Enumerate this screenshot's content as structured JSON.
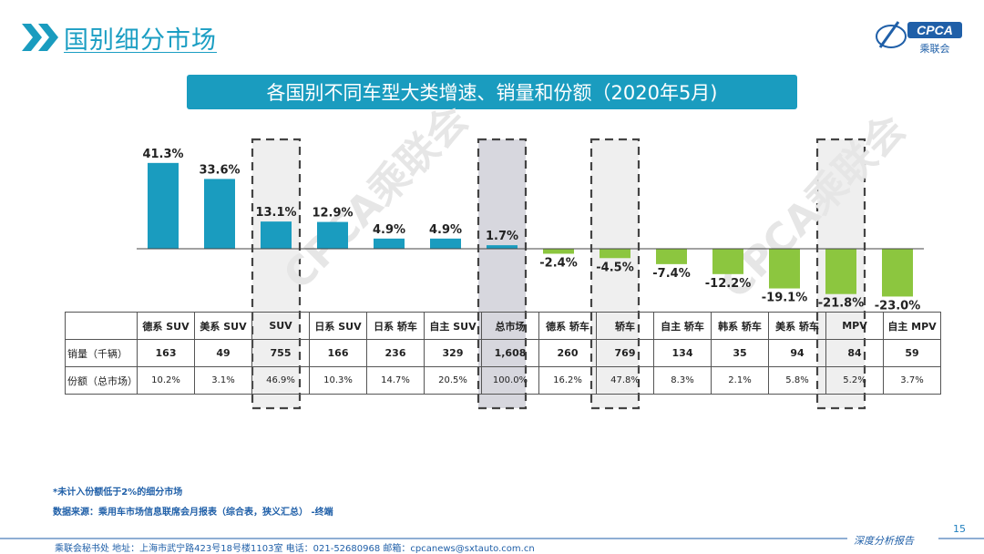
{
  "header": {
    "title": "国别细分市场",
    "logo_text": "CPCA",
    "logo_sub": "乘联会"
  },
  "chart_title": "各国别不同车型大类增速、销量和份额（2020年5月)",
  "watermark": "CPCA乘联会",
  "colors": {
    "positive": "#1a9cbf",
    "negative": "#8cc63f",
    "highlight_gray": "#d7d7de",
    "highlight_light": "#efefef"
  },
  "chart_data": {
    "type": "bar",
    "categories": [
      "德系 SUV",
      "美系 SUV",
      "SUV",
      "日系 SUV",
      "日系 轿车",
      "自主 SUV",
      "总市场",
      "德系 轿车",
      "轿车",
      "自主 轿车",
      "韩系 轿车",
      "美系 轿车",
      "MPV",
      "自主 MPV"
    ],
    "series": [
      {
        "values": [
          41.3,
          33.6,
          13.1,
          12.9,
          4.9,
          4.9,
          1.7,
          -2.4,
          -4.5,
          -7.4,
          -12.2,
          -19.1,
          -21.8,
          -23.0
        ]
      }
    ],
    "value_labels": [
      "41.3%",
      "33.6%",
      "13.1%",
      "12.9%",
      "4.9%",
      "4.9%",
      "1.7%",
      "-2.4%",
      "-4.5%",
      "-7.4%",
      "-12.2%",
      "-19.1%",
      "-21.8%",
      "-23.0%"
    ],
    "highlighted": [
      "SUV",
      "总市场",
      "轿车",
      "MPV"
    ]
  },
  "table": {
    "row_labels": [
      "销量（千辆）",
      "份额（总市场）"
    ],
    "sales": [
      "163",
      "49",
      "755",
      "166",
      "236",
      "329",
      "1,608",
      "260",
      "769",
      "134",
      "35",
      "94",
      "84",
      "59"
    ],
    "share": [
      "10.2%",
      "3.1%",
      "46.9%",
      "10.3%",
      "14.7%",
      "20.5%",
      "100.0%",
      "16.2%",
      "47.8%",
      "8.3%",
      "2.1%",
      "5.8%",
      "5.2%",
      "3.7%"
    ]
  },
  "notes": {
    "note1": "*未计入份额低于2%的细分市场",
    "note2": "数据来源：乘用车市场信息联席会月报表（综合表，狭义汇总）  -终端"
  },
  "footer": {
    "contact": "乘联会秘书处   地址：上海市武宁路423号18号楼1103室   电话：021-52680968    邮箱：cpcanews@sxtauto.com.cn",
    "tag": "深度分析报告",
    "page": "15"
  }
}
